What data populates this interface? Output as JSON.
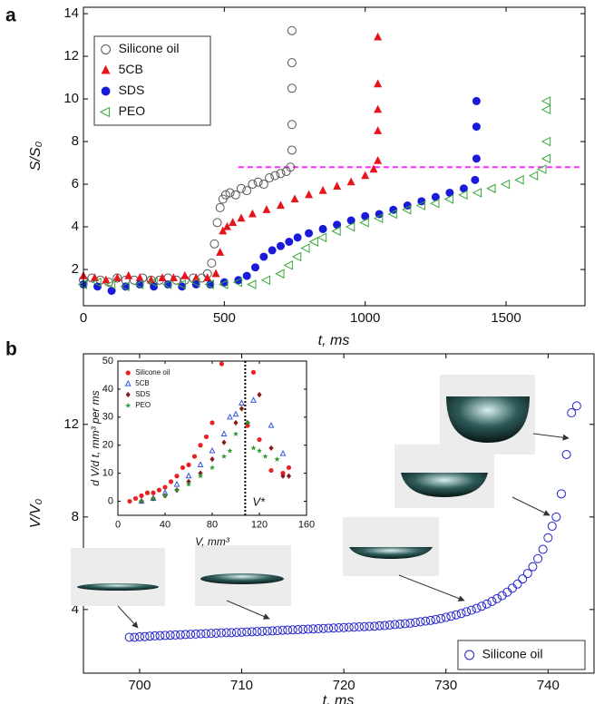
{
  "chart_data": [
    {
      "type": "scatter",
      "panel_label": "a",
      "xlabel": "t, ms",
      "ylabel": "S/S₀",
      "xlim": [
        0,
        1780
      ],
      "ylim": [
        0.3,
        14.3
      ],
      "xticks": [
        0,
        500,
        1000,
        1500
      ],
      "yticks": [
        2,
        4,
        6,
        8,
        10,
        12,
        14
      ],
      "legend": "upper left",
      "hline": {
        "y": 6.8,
        "x": [
          550,
          1760
        ],
        "color": "#ff2aff"
      },
      "series": [
        {
          "name": "Silicone oil",
          "color": "#555555",
          "marker": "circle-open",
          "x": [
            0,
            30,
            60,
            90,
            120,
            150,
            180,
            210,
            240,
            270,
            300,
            330,
            360,
            390,
            420,
            440,
            455,
            465,
            475,
            485,
            495,
            505,
            520,
            540,
            560,
            580,
            600,
            620,
            640,
            660,
            680,
            700,
            720,
            735,
            740,
            740,
            740,
            740,
            740
          ],
          "values": [
            1.5,
            1.6,
            1.5,
            1.4,
            1.6,
            1.5,
            1.5,
            1.6,
            1.5,
            1.5,
            1.6,
            1.5,
            1.5,
            1.6,
            1.6,
            1.8,
            2.3,
            3.2,
            4.2,
            4.9,
            5.3,
            5.5,
            5.6,
            5.5,
            5.8,
            5.7,
            6.0,
            6.1,
            6.0,
            6.3,
            6.4,
            6.5,
            6.6,
            6.8,
            7.6,
            8.8,
            10.5,
            11.7,
            13.2
          ]
        },
        {
          "name": "5CB",
          "color": "#e8141b",
          "marker": "triangle",
          "x": [
            0,
            40,
            80,
            120,
            160,
            200,
            240,
            280,
            320,
            360,
            400,
            440,
            470,
            485,
            495,
            510,
            530,
            560,
            600,
            650,
            700,
            750,
            800,
            850,
            900,
            950,
            1000,
            1030,
            1045,
            1045,
            1045,
            1045,
            1045
          ],
          "values": [
            1.7,
            1.6,
            1.5,
            1.6,
            1.7,
            1.6,
            1.5,
            1.6,
            1.6,
            1.7,
            1.6,
            1.6,
            1.8,
            2.8,
            3.8,
            4.0,
            4.2,
            4.4,
            4.6,
            4.8,
            5.0,
            5.3,
            5.5,
            5.7,
            5.9,
            6.1,
            6.4,
            6.7,
            7.1,
            8.5,
            9.5,
            10.7,
            12.9
          ]
        },
        {
          "name": "SDS",
          "color": "#1a1adb",
          "marker": "dot",
          "x": [
            0,
            50,
            100,
            150,
            200,
            250,
            300,
            350,
            400,
            450,
            500,
            550,
            580,
            610,
            640,
            670,
            700,
            730,
            760,
            800,
            850,
            900,
            950,
            1000,
            1050,
            1100,
            1150,
            1200,
            1250,
            1300,
            1350,
            1390,
            1395,
            1395,
            1395
          ],
          "values": [
            1.3,
            1.2,
            1.0,
            1.2,
            1.3,
            1.2,
            1.3,
            1.2,
            1.3,
            1.3,
            1.4,
            1.5,
            1.7,
            2.1,
            2.6,
            2.9,
            3.1,
            3.3,
            3.5,
            3.7,
            3.9,
            4.1,
            4.3,
            4.5,
            4.6,
            4.8,
            5.0,
            5.2,
            5.4,
            5.6,
            5.8,
            6.2,
            7.2,
            8.7,
            9.9
          ]
        },
        {
          "name": "PEO",
          "color": "#3aa83a",
          "marker": "triangle-left-open",
          "x": [
            0,
            50,
            100,
            150,
            200,
            250,
            300,
            350,
            400,
            450,
            500,
            550,
            600,
            650,
            700,
            730,
            760,
            790,
            820,
            850,
            900,
            950,
            1000,
            1050,
            1100,
            1150,
            1200,
            1250,
            1300,
            1350,
            1400,
            1450,
            1500,
            1550,
            1600,
            1630,
            1645,
            1645,
            1645,
            1645
          ],
          "values": [
            1.3,
            1.4,
            1.3,
            1.2,
            1.3,
            1.4,
            1.3,
            1.3,
            1.4,
            1.3,
            1.3,
            1.4,
            1.3,
            1.5,
            1.8,
            2.2,
            2.6,
            3.0,
            3.3,
            3.5,
            3.8,
            4.0,
            4.2,
            4.4,
            4.6,
            4.8,
            5.0,
            5.1,
            5.3,
            5.5,
            5.6,
            5.8,
            6.0,
            6.2,
            6.4,
            6.7,
            7.2,
            8.0,
            9.5,
            9.9
          ]
        }
      ]
    },
    {
      "type": "scatter",
      "panel_label": "b",
      "xlabel": "t, ms",
      "ylabel": "V/V₀",
      "xlim": [
        694.5,
        744.5
      ],
      "ylim": [
        1.25,
        15.05
      ],
      "xticks": [
        700,
        710,
        720,
        730,
        740
      ],
      "yticks": [
        4,
        8,
        12
      ],
      "legend": "lower right",
      "series": [
        {
          "name": "Silicone oil",
          "color": "#2222cc",
          "marker": "circle-open",
          "x": [
            699,
            699.5,
            700,
            700.5,
            701,
            701.5,
            702,
            702.5,
            703,
            703.5,
            704,
            704.5,
            705,
            705.5,
            706,
            706.5,
            707,
            707.5,
            708,
            708.5,
            709,
            709.5,
            710,
            710.5,
            711,
            711.5,
            712,
            712.5,
            713,
            713.5,
            714,
            714.5,
            715,
            715.5,
            716,
            716.5,
            717,
            717.5,
            718,
            718.5,
            719,
            719.5,
            720,
            720.5,
            721,
            721.5,
            722,
            722.5,
            723,
            723.5,
            724,
            724.5,
            725,
            725.5,
            726,
            726.5,
            727,
            727.5,
            728,
            728.5,
            729,
            729.5,
            730,
            730.5,
            731,
            731.5,
            732,
            732.5,
            733,
            733.5,
            734,
            734.5,
            735,
            735.5,
            736,
            736.5,
            737,
            737.5,
            738,
            738.5,
            739,
            739.5,
            740,
            740.4,
            740.8,
            741.3,
            741.8,
            742.3,
            742.8
          ],
          "values": [
            2.8,
            2.8,
            2.82,
            2.83,
            2.85,
            2.86,
            2.87,
            2.88,
            2.89,
            2.9,
            2.91,
            2.92,
            2.93,
            2.94,
            2.95,
            2.96,
            2.97,
            2.98,
            2.99,
            3.0,
            3.0,
            3.01,
            3.02,
            3.03,
            3.04,
            3.05,
            3.06,
            3.07,
            3.08,
            3.09,
            3.1,
            3.11,
            3.12,
            3.13,
            3.14,
            3.15,
            3.16,
            3.17,
            3.18,
            3.19,
            3.2,
            3.21,
            3.22,
            3.23,
            3.24,
            3.25,
            3.26,
            3.27,
            3.28,
            3.3,
            3.31,
            3.33,
            3.35,
            3.37,
            3.39,
            3.41,
            3.44,
            3.47,
            3.5,
            3.53,
            3.57,
            3.61,
            3.66,
            3.71,
            3.77,
            3.83,
            3.9,
            3.97,
            4.05,
            4.14,
            4.24,
            4.35,
            4.47,
            4.6,
            4.75,
            4.92,
            5.1,
            5.32,
            5.56,
            5.85,
            6.2,
            6.6,
            7.1,
            7.6,
            8.0,
            9.0,
            10.7,
            12.5,
            12.8
          ]
        }
      ]
    },
    {
      "type": "scatter",
      "xlabel": "V, mm³",
      "ylabel": "d V/d t, mm³ per ms",
      "xlim": [
        0,
        160
      ],
      "ylim": [
        -5,
        50
      ],
      "xticks": [
        0,
        40,
        80,
        120,
        160
      ],
      "yticks": [
        0,
        10,
        20,
        30,
        40,
        50
      ],
      "legend": "upper left",
      "vline": {
        "x": 108,
        "label": "V*",
        "color": "#000000"
      },
      "series": [
        {
          "name": "Silicone oil",
          "color": "#e82222",
          "marker": "dot",
          "x": [
            10,
            15,
            20,
            25,
            30,
            35,
            40,
            45,
            50,
            55,
            60,
            65,
            70,
            75,
            80,
            88,
            110,
            115,
            120,
            130,
            140,
            145
          ],
          "values": [
            0,
            1,
            2,
            3,
            3,
            4,
            5,
            7,
            9,
            12,
            13,
            16,
            20,
            23,
            28,
            49,
            27,
            46,
            22,
            11,
            10,
            12
          ]
        },
        {
          "name": "5CB",
          "color": "#3355dd",
          "marker": "triangle-open",
          "x": [
            20,
            30,
            40,
            50,
            60,
            70,
            80,
            90,
            95,
            100,
            105,
            115,
            130,
            140
          ],
          "values": [
            0,
            1,
            3,
            6,
            9,
            13,
            18,
            24,
            30,
            31,
            35,
            36,
            27,
            17
          ]
        },
        {
          "name": "SDS",
          "color": "#8b1a1a",
          "marker": "diamond",
          "x": [
            20,
            30,
            40,
            50,
            60,
            70,
            80,
            90,
            100,
            105,
            110,
            120,
            130,
            140,
            145
          ],
          "values": [
            0,
            1,
            2,
            4,
            7,
            10,
            15,
            21,
            28,
            33,
            28,
            38,
            19,
            9,
            9
          ]
        },
        {
          "name": "PEO",
          "color": "#2a9a2a",
          "marker": "star",
          "x": [
            20,
            30,
            40,
            50,
            60,
            70,
            80,
            90,
            95,
            100,
            110,
            115,
            120,
            125,
            135
          ],
          "values": [
            0,
            1,
            2,
            4,
            6,
            9,
            12,
            16,
            18,
            24,
            28,
            19,
            18,
            16,
            15
          ]
        }
      ]
    }
  ]
}
